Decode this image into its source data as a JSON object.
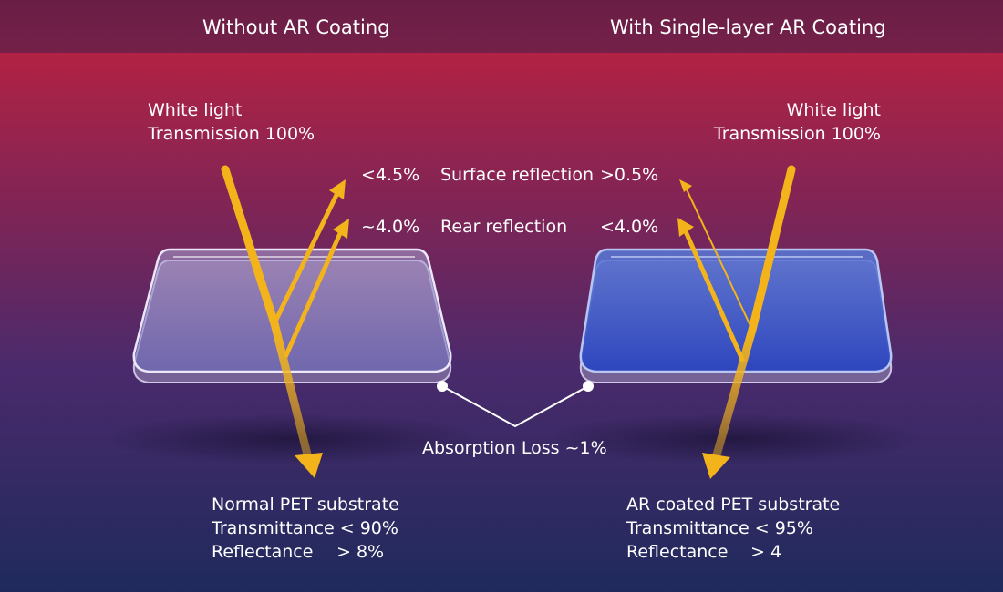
{
  "header": {
    "left_title": "Without AR Coating",
    "right_title": "With Single-layer AR Coating"
  },
  "left_input": {
    "line1": "White light",
    "line2": "Transmission 100%"
  },
  "right_input": {
    "line1": "White light",
    "line2": "Transmission 100%"
  },
  "reflections": {
    "surface": {
      "left_value": "<4.5%",
      "label": "Surface reflection",
      "right_value": ">0.5%"
    },
    "rear": {
      "left_value": "~4.0%",
      "label": "Rear reflection",
      "right_value": "<4.0%"
    }
  },
  "absorption_label": "Absorption Loss ~1%",
  "left_result": {
    "line1": "Normal PET substrate",
    "line2": "Transmittance < 90%",
    "line3_label": "Reflectance",
    "line3_value": "> 8%"
  },
  "right_result": {
    "line1": "AR coated PET substrate",
    "line2": "Transmittance < 95%",
    "line3_label": "Reflectance",
    "line3_value": "> 4"
  },
  "colors": {
    "header_band": "#6b1f48",
    "gradient_top": "#c3213d",
    "gradient_mid": "#5a2a6e",
    "gradient_bottom": "#1f2a5c",
    "light_beam": "#f3b41b",
    "text": "#ffffff"
  }
}
